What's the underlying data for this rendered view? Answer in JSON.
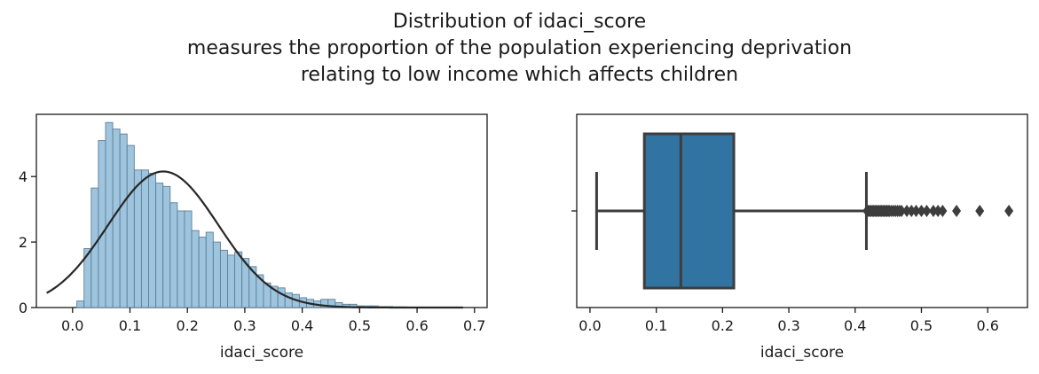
{
  "figure": {
    "title_lines": [
      "Distribution of idaci_score",
      "measures the proportion of the population experiencing deprivation",
      "relating to low income which affects children"
    ]
  },
  "chart_data": [
    {
      "type": "bar",
      "subtype": "histogram with fitted normal density curve",
      "xlabel": "idaci_score",
      "ylabel": "",
      "xlim": [
        -0.063,
        0.722
      ],
      "ylim": [
        0,
        5.9
      ],
      "xticks": [
        0.0,
        0.1,
        0.2,
        0.3,
        0.4,
        0.5,
        0.6,
        0.7
      ],
      "xtick_labels": [
        "0.0",
        "0.1",
        "0.2",
        "0.3",
        "0.4",
        "0.5",
        "0.6",
        "0.7"
      ],
      "yticks": [
        0,
        2,
        4
      ],
      "ytick_labels": [
        "0",
        "2",
        "4"
      ],
      "bin_width": 0.0125,
      "bins_start": 0.0075,
      "histogram_density": [
        0.2,
        1.8,
        3.65,
        5.1,
        5.65,
        5.45,
        5.3,
        4.95,
        4.2,
        4.2,
        4.1,
        3.8,
        3.7,
        3.2,
        2.95,
        2.95,
        2.35,
        2.15,
        2.3,
        2.0,
        1.75,
        1.6,
        1.7,
        1.5,
        1.25,
        1.0,
        0.75,
        0.65,
        0.6,
        0.45,
        0.4,
        0.3,
        0.25,
        0.2,
        0.25,
        0.25,
        0.15,
        0.1,
        0.1,
        0.05,
        0.05,
        0.05,
        0.03,
        0.03,
        0.02,
        0.02
      ],
      "fit_curve": {
        "distribution": "normal",
        "mean": 0.158,
        "std": 0.096,
        "x_range": [
          -0.045,
          0.68
        ]
      },
      "colors": {
        "bars": "#9ec4de",
        "bar_edge": "#5e7f96",
        "curve": "#262626"
      }
    },
    {
      "type": "box",
      "orientation": "horizontal",
      "xlabel": "idaci_score",
      "xlim": [
        -0.02,
        0.66
      ],
      "xticks": [
        0.0,
        0.1,
        0.2,
        0.3,
        0.4,
        0.5,
        0.6
      ],
      "xtick_labels": [
        "0.0",
        "0.1",
        "0.2",
        "0.3",
        "0.4",
        "0.5",
        "0.6"
      ],
      "whisker_low": 0.01,
      "q1": 0.082,
      "median": 0.137,
      "q3": 0.217,
      "whisker_high": 0.417,
      "outliers": [
        0.418,
        0.42,
        0.422,
        0.424,
        0.426,
        0.428,
        0.43,
        0.432,
        0.434,
        0.436,
        0.438,
        0.44,
        0.442,
        0.444,
        0.446,
        0.448,
        0.45,
        0.452,
        0.455,
        0.458,
        0.461,
        0.464,
        0.467,
        0.47,
        0.478,
        0.485,
        0.492,
        0.5,
        0.508,
        0.518,
        0.525,
        0.532,
        0.553,
        0.588,
        0.632
      ],
      "colors": {
        "box": "#3274a1",
        "lines": "#3d3d3d"
      }
    }
  ]
}
